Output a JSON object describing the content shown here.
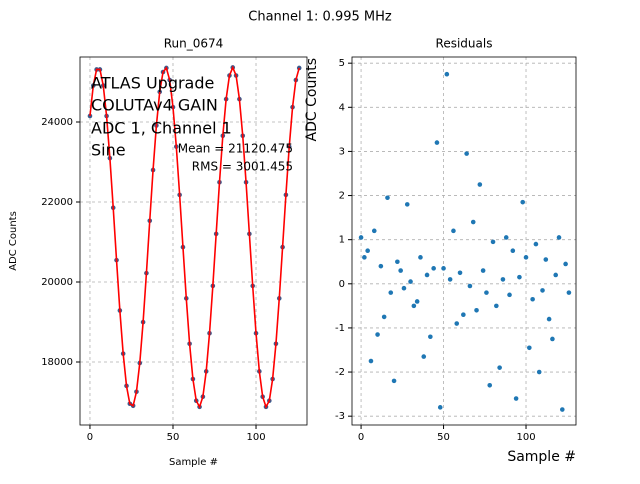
{
  "suptitle": "Channel 1: 0.995 MHz",
  "chart_data": [
    {
      "type": "scatter",
      "title": "Run_0674",
      "xlabel": "Sample #",
      "ylabel": "ADC Counts",
      "annotations": [
        "ATLAS Upgrade",
        "COLUTAv4 GAIN",
        "ADC 1, Channel 1",
        "Sine",
        "Mean = 21120.475",
        "RMS = 3001.455"
      ],
      "x": [
        0,
        2,
        4,
        6,
        8,
        10,
        12,
        14,
        16,
        18,
        20,
        22,
        24,
        26,
        28,
        30,
        32,
        34,
        36,
        38,
        40,
        42,
        44,
        46,
        48,
        50,
        52,
        54,
        56,
        58,
        60,
        62,
        64,
        66,
        68,
        70,
        72,
        74,
        76,
        78,
        80,
        82,
        84,
        86,
        88,
        90,
        92,
        94,
        96,
        98,
        100,
        102,
        104,
        106,
        108,
        110,
        112,
        114,
        116,
        118,
        120,
        122,
        124,
        126
      ],
      "series": [
        {
          "style": "marker",
          "color": "#3d5a8c",
          "values": [
            24151,
            24912,
            25313,
            25313,
            24912,
            24151,
            23098,
            21857,
            20546,
            19289,
            18208,
            17404,
            16956,
            16905,
            17256,
            17976,
            18998,
            20222,
            21531,
            22801,
            23912,
            24753,
            25249,
            25351,
            25049,
            24371,
            23383,
            22178,
            20873,
            19591,
            18456,
            17574,
            17032,
            16879,
            17132,
            17766,
            18720,
            19903,
            21202,
            22493,
            23655,
            24573,
            25162,
            25364,
            25162,
            24573,
            23655,
            22493,
            21202,
            19903,
            18720,
            17766,
            17132,
            16879,
            17032,
            17574,
            18456,
            19591,
            20873,
            22178,
            23383,
            24371,
            25049,
            25351
          ]
        },
        {
          "style": "line",
          "color": "#ff0000",
          "values": [
            24151,
            24912,
            25313,
            25313,
            24912,
            24151,
            23098,
            21857,
            20546,
            19289,
            18208,
            17404,
            16956,
            16905,
            17256,
            17976,
            18998,
            20222,
            21531,
            22801,
            23912,
            24753,
            25249,
            25351,
            25049,
            24371,
            23383,
            22178,
            20873,
            19591,
            18456,
            17574,
            17032,
            16879,
            17132,
            17766,
            18720,
            19903,
            21202,
            22493,
            23655,
            24573,
            25162,
            25364,
            25162,
            24573,
            23655,
            22493,
            21202,
            19903,
            18720,
            17766,
            17132,
            16879,
            17032,
            17574,
            18456,
            19591,
            20873,
            22178,
            23383,
            24371,
            25049,
            25351
          ]
        }
      ],
      "xlim": [
        -6,
        130.7
      ],
      "xticks": [
        0,
        50,
        100
      ],
      "ylim": [
        16425,
        25625
      ],
      "yticks": [
        18000,
        20000,
        22000,
        24000
      ],
      "grid": true
    },
    {
      "type": "scatter",
      "title": "Residuals",
      "xlabel": "Sample #",
      "ylabel": "ADC Counts",
      "x": [
        0,
        2,
        4,
        6,
        8,
        10,
        12,
        14,
        16,
        18,
        20,
        22,
        24,
        26,
        28,
        30,
        32,
        34,
        36,
        38,
        40,
        42,
        44,
        46,
        48,
        50,
        52,
        54,
        56,
        58,
        60,
        62,
        64,
        66,
        68,
        70,
        72,
        74,
        76,
        78,
        80,
        82,
        84,
        86,
        88,
        90,
        92,
        94,
        96,
        98,
        100,
        102,
        104,
        106,
        108,
        110,
        112,
        114,
        116,
        118,
        120,
        122,
        124,
        126
      ],
      "series": [
        {
          "style": "marker",
          "color": "#1f77b4",
          "values": [
            1.05,
            0.6,
            0.75,
            -1.75,
            1.2,
            -1.15,
            0.4,
            -0.75,
            1.95,
            -0.2,
            -2.2,
            0.5,
            0.3,
            -0.1,
            1.8,
            0.05,
            -0.5,
            -0.4,
            0.6,
            -1.65,
            0.2,
            -1.2,
            0.35,
            3.2,
            -2.8,
            0.35,
            4.75,
            0.1,
            1.2,
            -0.9,
            0.25,
            -0.7,
            2.95,
            -0.05,
            1.4,
            -0.6,
            2.25,
            0.3,
            -0.2,
            -2.3,
            0.95,
            -0.5,
            -1.9,
            0.1,
            1.05,
            -0.25,
            0.75,
            -2.6,
            0.15,
            1.85,
            0.6,
            -1.45,
            -0.35,
            0.9,
            -2.0,
            -0.15,
            0.55,
            -0.8,
            -1.25,
            0.2,
            1.05,
            -2.85,
            0.45,
            -0.2
          ]
        }
      ],
      "xlim": [
        -5.5,
        130.3
      ],
      "xticks": [
        0,
        50,
        100
      ],
      "ylim": [
        -3.2,
        5.14
      ],
      "yticks": [
        -3,
        -2,
        -1,
        0,
        1,
        2,
        3,
        4,
        5
      ],
      "grid": true
    }
  ]
}
